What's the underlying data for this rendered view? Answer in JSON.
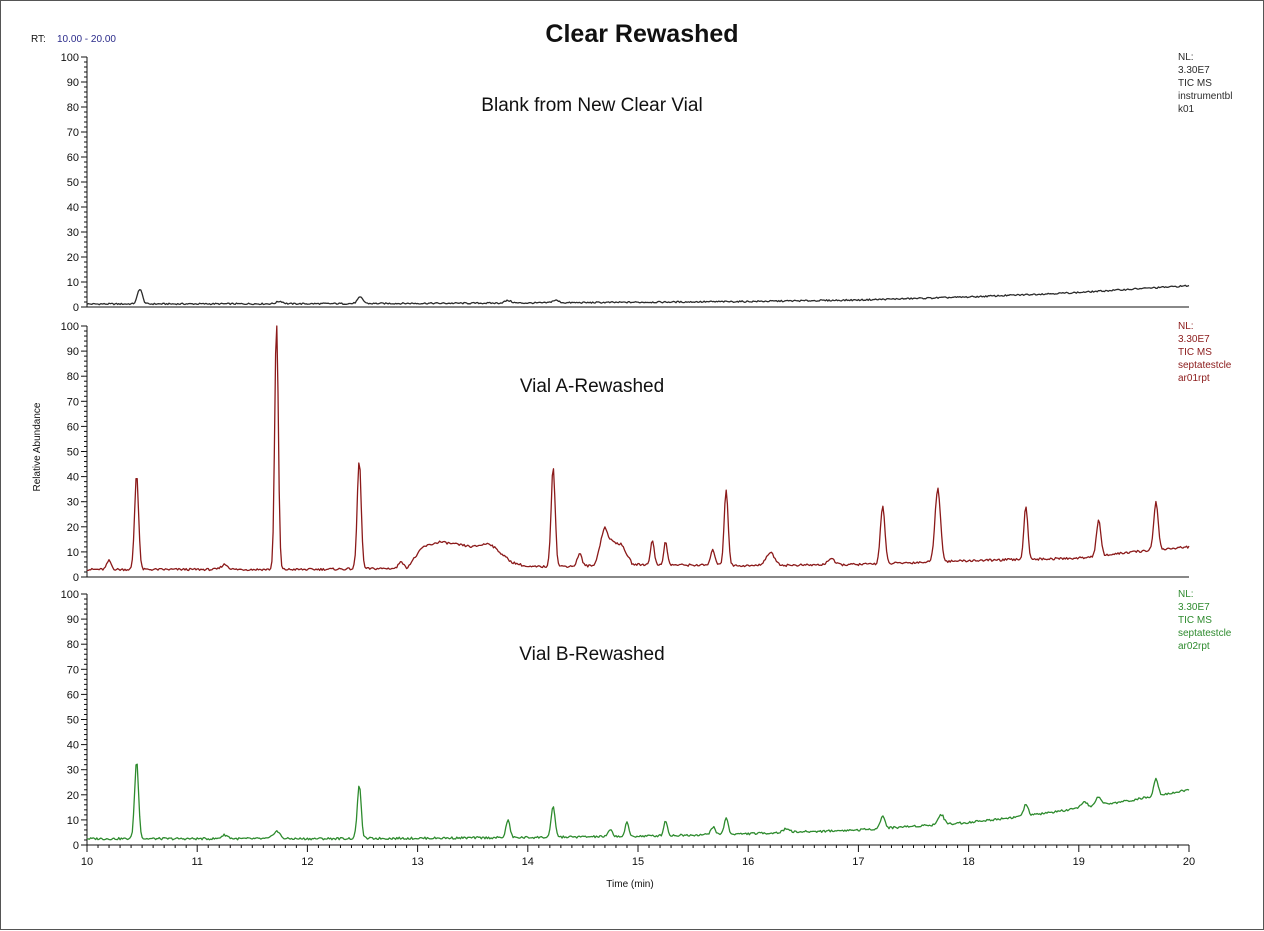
{
  "title": "Clear Rewashed",
  "rt_label": "RT:",
  "rt_range": "10.00 - 20.00",
  "y_axis_label": "Relative Abundance",
  "x_axis_label": "Time (min)",
  "colors": {
    "blank": "#2b2b2b",
    "vialA": "#8b1a1a",
    "vialB": "#2e8b2e"
  },
  "chart_data": {
    "type": "line",
    "title": "Clear Rewashed",
    "xlabel": "Time (min)",
    "ylabel": "Relative Abundance",
    "xlim": [
      10,
      20
    ],
    "ylim": [
      0,
      100
    ],
    "x_ticks": [
      10,
      11,
      12,
      13,
      14,
      15,
      16,
      17,
      18,
      19,
      20
    ],
    "y_ticks": [
      0,
      10,
      20,
      30,
      40,
      50,
      60,
      70,
      80,
      90,
      100
    ],
    "panels": [
      {
        "key": "blank",
        "name": "Blank from New Clear Vial",
        "meta": [
          "NL:",
          "3.30E7",
          "TIC MS",
          "instrumentbl",
          "k01"
        ],
        "baseline": [
          [
            10.0,
            1.2
          ],
          [
            12.0,
            1.3
          ],
          [
            14.0,
            1.6
          ],
          [
            16.0,
            2.2
          ],
          [
            17.0,
            2.8
          ],
          [
            18.0,
            4.0
          ],
          [
            19.0,
            5.8
          ],
          [
            19.5,
            7.2
          ],
          [
            20.0,
            8.5
          ]
        ],
        "peaks": [
          [
            10.48,
            6.0,
            0.022
          ],
          [
            11.75,
            1.0,
            0.03
          ],
          [
            12.48,
            2.5,
            0.025
          ],
          [
            13.82,
            1.0,
            0.03
          ],
          [
            14.25,
            1.0,
            0.03
          ]
        ]
      },
      {
        "key": "vialA",
        "name": "Vial A-Rewashed",
        "meta": [
          "NL:",
          "3.30E7",
          "TIC MS",
          "septatestcle",
          "ar01rpt"
        ],
        "baseline": [
          [
            10.0,
            3.0
          ],
          [
            12.0,
            3.0
          ],
          [
            12.9,
            3.5
          ],
          [
            13.05,
            12.0
          ],
          [
            13.2,
            14.0
          ],
          [
            13.5,
            12.0
          ],
          [
            13.65,
            13.5
          ],
          [
            13.85,
            6.0
          ],
          [
            14.0,
            4.0
          ],
          [
            14.6,
            4.5
          ],
          [
            14.7,
            15.0
          ],
          [
            14.85,
            13.0
          ],
          [
            14.95,
            5.0
          ],
          [
            16.0,
            4.5
          ],
          [
            17.0,
            5.0
          ],
          [
            18.0,
            6.5
          ],
          [
            19.0,
            7.5
          ],
          [
            19.5,
            10.0
          ],
          [
            20.0,
            12.0
          ]
        ],
        "peaks": [
          [
            10.2,
            3.5,
            0.02
          ],
          [
            10.45,
            38.0,
            0.018
          ],
          [
            11.25,
            2.0,
            0.03
          ],
          [
            11.72,
            100.0,
            0.016
          ],
          [
            12.47,
            43.0,
            0.018
          ],
          [
            12.85,
            3.0,
            0.02
          ],
          [
            14.23,
            40.0,
            0.018
          ],
          [
            14.47,
            5.0,
            0.02
          ],
          [
            14.69,
            5.0,
            0.03
          ],
          [
            15.13,
            10.0,
            0.016
          ],
          [
            15.25,
            9.0,
            0.016
          ],
          [
            15.68,
            6.0,
            0.02
          ],
          [
            15.8,
            30.0,
            0.018
          ],
          [
            16.2,
            5.0,
            0.04
          ],
          [
            16.75,
            2.5,
            0.03
          ],
          [
            17.22,
            23.0,
            0.02
          ],
          [
            17.72,
            29.0,
            0.025
          ],
          [
            18.52,
            21.0,
            0.018
          ],
          [
            19.18,
            14.0,
            0.02
          ],
          [
            19.7,
            19.0,
            0.02
          ]
        ]
      },
      {
        "key": "vialB",
        "name": "Vial B-Rewashed",
        "meta": [
          "NL:",
          "3.30E7",
          "TIC MS",
          "septatestcle",
          "ar02rpt"
        ],
        "baseline": [
          [
            10.0,
            2.5
          ],
          [
            12.0,
            2.5
          ],
          [
            13.0,
            2.7
          ],
          [
            14.0,
            3.0
          ],
          [
            15.0,
            3.5
          ],
          [
            16.0,
            4.5
          ],
          [
            17.0,
            6.0
          ],
          [
            17.5,
            7.5
          ],
          [
            18.0,
            9.0
          ],
          [
            18.5,
            11.5
          ],
          [
            19.0,
            14.5
          ],
          [
            19.5,
            18.0
          ],
          [
            20.0,
            22.0
          ]
        ],
        "peaks": [
          [
            10.45,
            31.0,
            0.018
          ],
          [
            11.25,
            1.5,
            0.03
          ],
          [
            11.72,
            3.0,
            0.03
          ],
          [
            12.47,
            21.0,
            0.018
          ],
          [
            13.82,
            7.0,
            0.018
          ],
          [
            14.23,
            12.0,
            0.018
          ],
          [
            14.75,
            2.5,
            0.02
          ],
          [
            14.9,
            5.5,
            0.016
          ],
          [
            15.25,
            6.0,
            0.016
          ],
          [
            15.68,
            3.0,
            0.02
          ],
          [
            15.8,
            6.5,
            0.018
          ],
          [
            16.35,
            1.5,
            0.03
          ],
          [
            17.22,
            5.0,
            0.02
          ],
          [
            17.75,
            4.0,
            0.025
          ],
          [
            18.52,
            4.5,
            0.02
          ],
          [
            19.05,
            2.0,
            0.03
          ],
          [
            19.18,
            3.5,
            0.025
          ],
          [
            19.7,
            7.0,
            0.02
          ]
        ]
      }
    ]
  }
}
